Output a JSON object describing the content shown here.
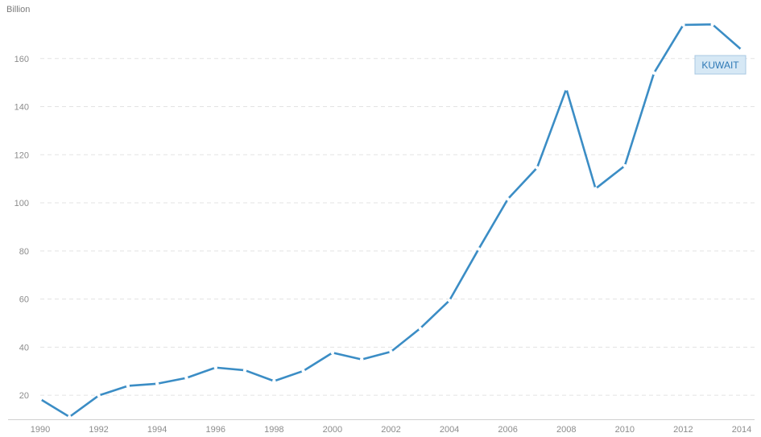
{
  "chart_data": {
    "type": "line",
    "ylabel": "Billion",
    "x": [
      1990,
      1991,
      1992,
      1993,
      1994,
      1995,
      1996,
      1997,
      1998,
      1999,
      2000,
      2001,
      2002,
      2003,
      2004,
      2005,
      2006,
      2007,
      2008,
      2009,
      2010,
      2011,
      2012,
      2013,
      2014
    ],
    "series": [
      {
        "name": "KUWAIT",
        "values": [
          18.4,
          11.0,
          19.9,
          23.9,
          24.8,
          27.2,
          31.5,
          30.4,
          25.9,
          30.1,
          37.7,
          34.9,
          38.1,
          47.8,
          59.4,
          80.8,
          101.6,
          114.6,
          147.4,
          105.9,
          115.4,
          154.0,
          174.0,
          174.2,
          163.6
        ]
      }
    ],
    "ylim": [
      10,
      180
    ],
    "yticks": [
      20,
      40,
      60,
      80,
      100,
      120,
      140,
      160
    ],
    "xticks": [
      1990,
      1992,
      1994,
      1996,
      1998,
      2000,
      2002,
      2004,
      2006,
      2008,
      2010,
      2012,
      2014
    ],
    "grid": true,
    "legend": "inline-end"
  },
  "colors": {
    "line": "#3b8dc5",
    "label_bg": "#d6e8f5",
    "label_border": "#a9c8e2",
    "label_text": "#2d78b5"
  }
}
